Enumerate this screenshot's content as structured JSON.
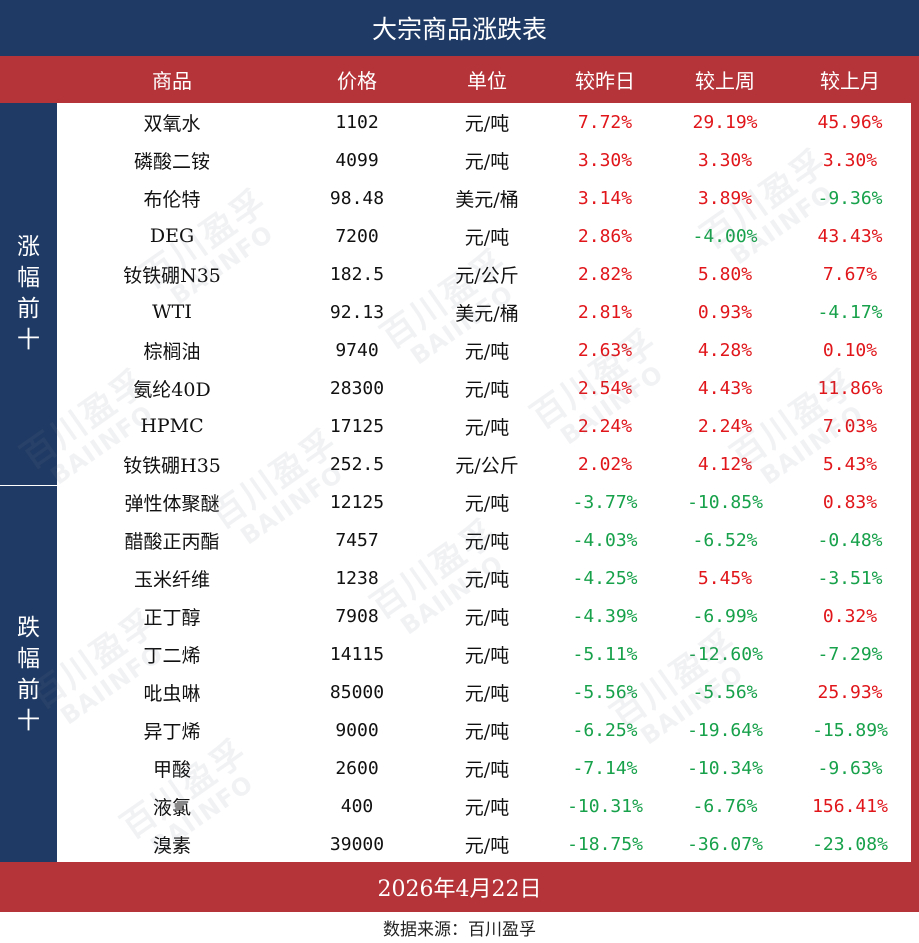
{
  "title": "大宗商品涨跌表",
  "headers": [
    "商品",
    "价格",
    "单位",
    "较昨日",
    "较上周",
    "较上月"
  ],
  "groups": {
    "up_label": "涨幅前十",
    "down_label": "跌幅前十"
  },
  "rows": [
    {
      "name": "双氧水",
      "price": "1102",
      "unit": "元/吨",
      "d": "7.72%",
      "w": "29.19%",
      "m": "45.96%"
    },
    {
      "name": "磷酸二铵",
      "price": "4099",
      "unit": "元/吨",
      "d": "3.30%",
      "w": "3.30%",
      "m": "3.30%"
    },
    {
      "name": "布伦特",
      "price": "98.48",
      "unit": "美元/桶",
      "d": "3.14%",
      "w": "3.89%",
      "m": "-9.36%"
    },
    {
      "name": "DEG",
      "price": "7200",
      "unit": "元/吨",
      "d": "2.86%",
      "w": "-4.00%",
      "m": "43.43%"
    },
    {
      "name": "钕铁硼N35",
      "price": "182.5",
      "unit": "元/公斤",
      "d": "2.82%",
      "w": "5.80%",
      "m": "7.67%"
    },
    {
      "name": "WTI",
      "price": "92.13",
      "unit": "美元/桶",
      "d": "2.81%",
      "w": "0.93%",
      "m": "-4.17%"
    },
    {
      "name": "棕榈油",
      "price": "9740",
      "unit": "元/吨",
      "d": "2.63%",
      "w": "4.28%",
      "m": "0.10%"
    },
    {
      "name": "氨纶40D",
      "price": "28300",
      "unit": "元/吨",
      "d": "2.54%",
      "w": "4.43%",
      "m": "11.86%"
    },
    {
      "name": "HPMC",
      "price": "17125",
      "unit": "元/吨",
      "d": "2.24%",
      "w": "2.24%",
      "m": "7.03%"
    },
    {
      "name": "钕铁硼H35",
      "price": "252.5",
      "unit": "元/公斤",
      "d": "2.02%",
      "w": "4.12%",
      "m": "5.43%"
    },
    {
      "name": "弹性体聚醚",
      "price": "12125",
      "unit": "元/吨",
      "d": "-3.77%",
      "w": "-10.85%",
      "m": "0.83%"
    },
    {
      "name": "醋酸正丙酯",
      "price": "7457",
      "unit": "元/吨",
      "d": "-4.03%",
      "w": "-6.52%",
      "m": "-0.48%"
    },
    {
      "name": "玉米纤维",
      "price": "1238",
      "unit": "元/吨",
      "d": "-4.25%",
      "w": "5.45%",
      "m": "-3.51%"
    },
    {
      "name": "正丁醇",
      "price": "7908",
      "unit": "元/吨",
      "d": "-4.39%",
      "w": "-6.99%",
      "m": "0.32%"
    },
    {
      "name": "丁二烯",
      "price": "14115",
      "unit": "元/吨",
      "d": "-5.11%",
      "w": "-12.60%",
      "m": "-7.29%"
    },
    {
      "name": "吡虫啉",
      "price": "85000",
      "unit": "元/吨",
      "d": "-5.56%",
      "w": "-5.56%",
      "m": "25.93%"
    },
    {
      "name": "异丁烯",
      "price": "9000",
      "unit": "元/吨",
      "d": "-6.25%",
      "w": "-19.64%",
      "m": "-15.89%"
    },
    {
      "name": "甲酸",
      "price": "2600",
      "unit": "元/吨",
      "d": "-7.14%",
      "w": "-10.34%",
      "m": "-9.63%"
    },
    {
      "name": "液氯",
      "price": "400",
      "unit": "元/吨",
      "d": "-10.31%",
      "w": "-6.76%",
      "m": "156.41%"
    },
    {
      "name": "溴素",
      "price": "39000",
      "unit": "元/吨",
      "d": "-18.75%",
      "w": "-36.07%",
      "m": "-23.08%"
    }
  ],
  "date": "2026年4月22日",
  "source": "数据来源：百川盈孚",
  "watermark": {
    "cn": "百川盈孚",
    "en": "BAIINFO"
  },
  "colors": {
    "navy": "#1f3a64",
    "red_bar": "#b5343a",
    "up": "#e0161b",
    "down": "#17a14a"
  }
}
